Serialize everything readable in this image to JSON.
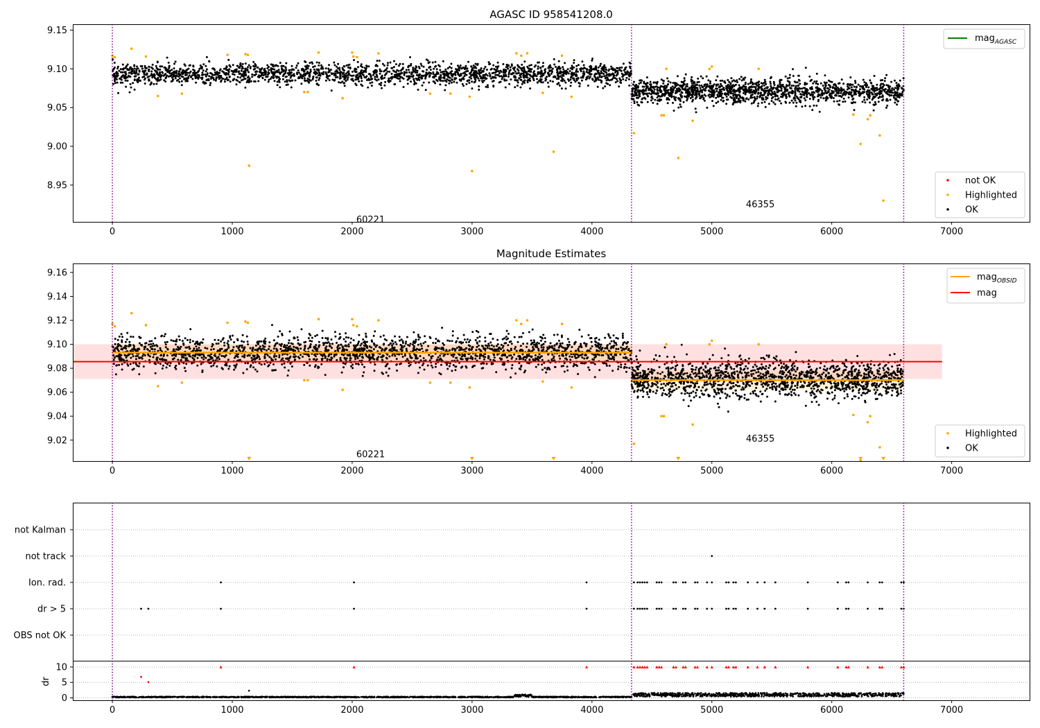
{
  "chart_data": [
    {
      "type": "scatter",
      "title": "AGASC ID 958541208.0",
      "xlim": [
        -330,
        7650
      ],
      "ylim": [
        8.9025,
        9.1575
      ],
      "xticks": [
        0,
        1000,
        2000,
        3000,
        4000,
        5000,
        6000,
        7000
      ],
      "yticks": [
        8.95,
        9.0,
        9.05,
        9.1,
        9.15
      ],
      "obs_boundaries": [
        0,
        4330,
        6600
      ],
      "obs_labels": [
        {
          "x": 2200,
          "y": 8.905,
          "text": "60221"
        },
        {
          "x": 5450,
          "y": 8.925,
          "text": "46355"
        }
      ],
      "legend_upper": [
        {
          "name": "mag",
          "sub": "AGASC",
          "color": "#008000"
        }
      ],
      "legend_lower": [
        {
          "name": "not OK",
          "color": "#ff0000"
        },
        {
          "name": "Highlighted",
          "color": "#ffa500"
        },
        {
          "name": "OK",
          "color": "#000000"
        }
      ],
      "series": [
        {
          "name": "OK",
          "segments": [
            {
              "x0": 0,
              "x1": 4330,
              "mean": 9.093,
              "spread": 0.007,
              "n": 2100
            },
            {
              "x0": 4330,
              "x1": 6600,
              "mean": 9.071,
              "spread": 0.008,
              "n": 1500
            }
          ]
        },
        {
          "name": "Highlighted",
          "points": [
            [
              0,
              9.117
            ],
            [
              20,
              9.115
            ],
            [
              160,
              9.126
            ],
            [
              280,
              9.116
            ],
            [
              380,
              9.065
            ],
            [
              580,
              9.068
            ],
            [
              960,
              9.118
            ],
            [
              1110,
              9.119
            ],
            [
              1130,
              9.118
            ],
            [
              1140,
              8.975
            ],
            [
              1600,
              9.07
            ],
            [
              1630,
              9.07
            ],
            [
              1720,
              9.121
            ],
            [
              1920,
              9.062
            ],
            [
              2000,
              9.121
            ],
            [
              2010,
              9.116
            ],
            [
              2040,
              9.115
            ],
            [
              2220,
              9.12
            ],
            [
              2650,
              9.068
            ],
            [
              2820,
              9.068
            ],
            [
              2980,
              9.064
            ],
            [
              3000,
              8.968
            ],
            [
              3370,
              9.12
            ],
            [
              3410,
              9.117
            ],
            [
              3460,
              9.12
            ],
            [
              3590,
              9.069
            ],
            [
              3680,
              8.993
            ],
            [
              3750,
              9.117
            ],
            [
              3830,
              9.064
            ],
            [
              4350,
              9.017
            ],
            [
              4580,
              9.04
            ],
            [
              4600,
              9.04
            ],
            [
              4620,
              9.1
            ],
            [
              4720,
              8.985
            ],
            [
              4840,
              9.033
            ],
            [
              4980,
              9.1
            ],
            [
              5000,
              9.103
            ],
            [
              5390,
              9.1
            ],
            [
              6180,
              9.041
            ],
            [
              6240,
              9.003
            ],
            [
              6300,
              9.035
            ],
            [
              6320,
              9.04
            ],
            [
              6400,
              9.014
            ],
            [
              6430,
              8.93
            ]
          ]
        }
      ]
    },
    {
      "type": "scatter",
      "title": "Magnitude Estimates",
      "xlim": [
        -330,
        7650
      ],
      "ylim": [
        9.0025,
        9.1675
      ],
      "xticks": [
        0,
        1000,
        2000,
        3000,
        4000,
        5000,
        6000,
        7000
      ],
      "yticks": [
        9.02,
        9.04,
        9.06,
        9.08,
        9.1,
        9.12,
        9.14,
        9.16
      ],
      "obs_boundaries": [
        0,
        4330,
        6600
      ],
      "obs_labels": [
        {
          "x": 2200,
          "y": 9.008,
          "text": "60221"
        },
        {
          "x": 5450,
          "y": 9.021,
          "text": "46355"
        }
      ],
      "mag": {
        "value": 9.0855,
        "band": [
          9.071,
          9.1
        ],
        "x0": -330,
        "x1": 6920,
        "color": "#ff0000"
      },
      "mag_obsid": [
        {
          "x0": 0,
          "x1": 4330,
          "value": 9.093,
          "band": [
            9.086,
            9.1
          ]
        },
        {
          "x0": 4330,
          "x1": 6600,
          "value": 9.07,
          "band": [
            9.062,
            9.078
          ]
        }
      ],
      "offscale_markers": [
        1140,
        3000,
        3680,
        4720,
        6240,
        6430
      ],
      "legend_upper": [
        {
          "name": "mag",
          "sub": "OBSID",
          "color": "#ffa500"
        },
        {
          "name": "mag",
          "sub": "",
          "color": "#ff0000"
        }
      ],
      "legend_lower": [
        {
          "name": "Highlighted",
          "color": "#ffa500"
        },
        {
          "name": "OK",
          "color": "#000000"
        }
      ]
    },
    {
      "type": "scatter",
      "title": "",
      "xlim": [
        -330,
        7650
      ],
      "xticks": [
        0,
        1000,
        2000,
        3000,
        4000,
        5000,
        6000,
        7000
      ],
      "flags": {
        "categories": [
          "not Kalman",
          "not track",
          "Ion. rad.",
          "dr > 5",
          "OBS not OK"
        ],
        "not track": [
          5000
        ],
        "Ion. rad.": [
          905,
          2015,
          3955,
          4350,
          4380,
          4400,
          4420,
          4440,
          4460,
          4540,
          4560,
          4580,
          4680,
          4700,
          4760,
          4780,
          4860,
          4880,
          4960,
          5000,
          5120,
          5140,
          5180,
          5200,
          5300,
          5380,
          5440,
          5530,
          5800,
          6050,
          6120,
          6140,
          6300,
          6400,
          6420,
          6580,
          6600
        ],
        "dr > 5": [
          240,
          300,
          905,
          2015,
          3955,
          4350,
          4380,
          4400,
          4420,
          4440,
          4460,
          4540,
          4560,
          4580,
          4680,
          4700,
          4760,
          4780,
          4860,
          4880,
          4960,
          5000,
          5120,
          5140,
          5180,
          5200,
          5300,
          5380,
          5440,
          5530,
          5800,
          6050,
          6120,
          6140,
          6300,
          6400,
          6420,
          6580,
          6600
        ]
      },
      "dr": {
        "ylabel": "dr",
        "ylim": [
          -0.8,
          11.8
        ],
        "yticks": [
          0,
          5,
          10
        ],
        "clipped_at_10": [
          905,
          2015,
          3955,
          4350,
          4380,
          4400,
          4420,
          4440,
          4460,
          4540,
          4560,
          4580,
          4680,
          4700,
          4760,
          4780,
          4860,
          4880,
          4960,
          5000,
          5120,
          5140,
          5180,
          5200,
          5300,
          5380,
          5440,
          5530,
          5800,
          6050,
          6120,
          6140,
          6300,
          6400,
          6420,
          6580,
          6600
        ],
        "highlighted": [
          [
            240,
            6.8
          ],
          [
            300,
            5.1
          ]
        ],
        "baseline": [
          {
            "x0": 0,
            "x1": 3350,
            "level": 0.25
          },
          {
            "x0": 3350,
            "x1": 3500,
            "level": 0.7
          },
          {
            "x0": 3500,
            "x1": 4330,
            "level": 0.25
          },
          {
            "x0": 4330,
            "x1": 6600,
            "level": 1.0
          }
        ]
      }
    }
  ]
}
